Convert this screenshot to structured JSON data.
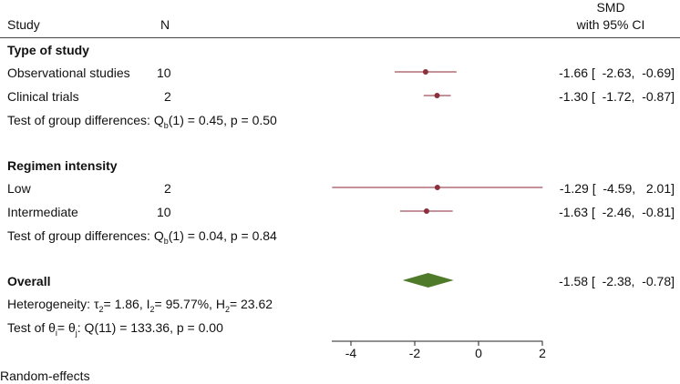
{
  "chart_data": {
    "type": "forest",
    "header": {
      "study_label": "Study",
      "n_label": "N",
      "effect_label_line1": "SMD",
      "effect_label_line2": "with 95% CI"
    },
    "groups": [
      {
        "title": "Type of study",
        "studies": [
          {
            "name": "Observational studies",
            "n": "10",
            "smd": -1.66,
            "lower": -2.63,
            "upper": -0.69,
            "ci_text": "-1.66 [  -2.63,  -0.69]"
          },
          {
            "name": "Clinical trials",
            "n": "2",
            "smd": -1.3,
            "lower": -1.72,
            "upper": -0.87,
            "ci_text": "-1.30 [  -1.72,  -0.87]"
          }
        ],
        "test": {
          "prefix": "Test of group differences: Q",
          "sub": "b",
          "rest": "(1) = 0.45, p = 0.50"
        }
      },
      {
        "title": "Regimen intensity",
        "studies": [
          {
            "name": "Low",
            "n": "2",
            "smd": -1.29,
            "lower": -4.59,
            "upper": 2.01,
            "ci_text": "-1.29 [  -4.59,   2.01]"
          },
          {
            "name": "Intermediate",
            "n": "10",
            "smd": -1.63,
            "lower": -2.46,
            "upper": -0.81,
            "ci_text": "-1.63 [  -2.46,  -0.81]"
          }
        ],
        "test": {
          "prefix": "Test of group differences: Q",
          "sub": "b",
          "rest": "(1) = 0.04, p = 0.84"
        }
      }
    ],
    "overall": {
      "label": "Overall",
      "smd": -1.58,
      "lower": -2.38,
      "upper": -0.78,
      "ci_text": "-1.58 [  -2.38,  -0.78]"
    },
    "heterogeneity": {
      "prefix": "Heterogeneity: τ",
      "tau_sub": "2",
      "tau_val": "= 1.86, I",
      "i_sub": "2",
      "i_val": "= 95.77%, H",
      "h_sub": "2",
      "h_val": "= 23.62"
    },
    "homogeneity_test": {
      "prefix": "Test of θ",
      "sub1": "i",
      "mid": "= θ",
      "sub2": "j",
      "rest": ": Q(11) = 133.36, p = 0.00"
    },
    "xaxis": {
      "ticks": [
        -4,
        -2,
        0,
        2
      ],
      "tick_labels": [
        "-4",
        "-2",
        "0",
        "2"
      ],
      "range": [
        -4.6,
        2.01
      ]
    },
    "footer": "Random-effects",
    "colors": {
      "ci_line": "#a0525a",
      "point": "#8b2f3a",
      "diamond": "#4f7a2a",
      "axis": "#222222",
      "rule": "#444444"
    }
  }
}
